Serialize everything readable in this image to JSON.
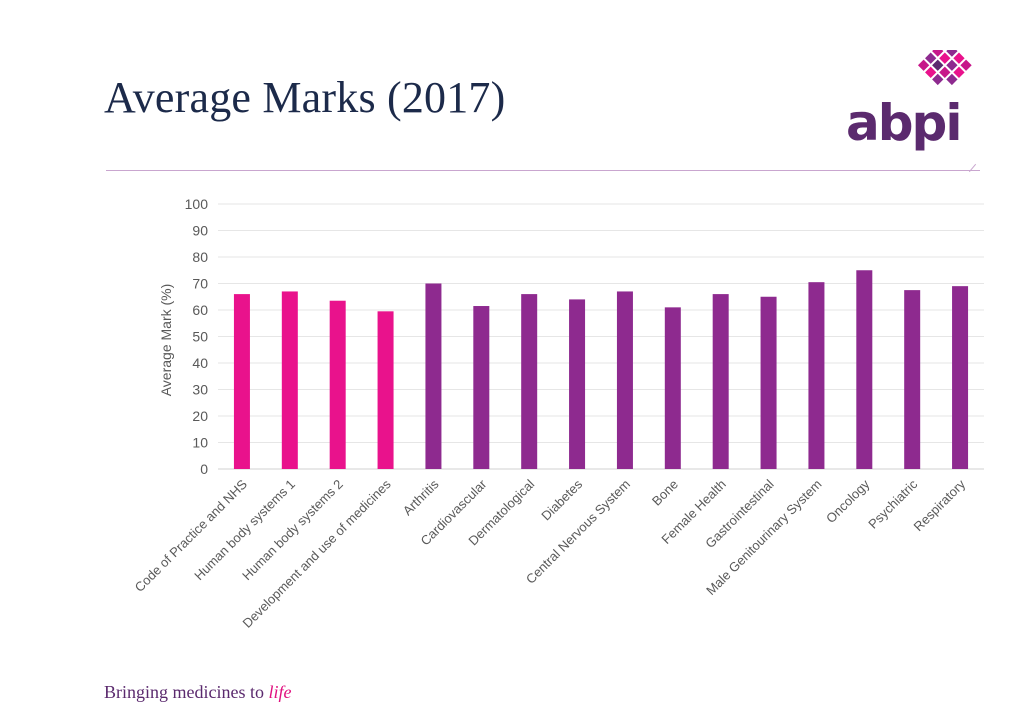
{
  "title": "Average Marks (2017)",
  "logo": {
    "text": "abpi",
    "icon": "tree-pixel-icon"
  },
  "footer": {
    "tagline_prefix": "Bringing medicines to",
    "tagline_emphasis": "life"
  },
  "colors": {
    "primary": "#e9128c",
    "secondary": "#8e2a8f",
    "title": "#1c2a4a",
    "brand": "#5b2a6e"
  },
  "chart_data": {
    "type": "bar",
    "ylabel": "Average Mark (%)",
    "ylim": [
      0,
      100
    ],
    "yticks": [
      0,
      10,
      20,
      30,
      40,
      50,
      60,
      70,
      80,
      90,
      100
    ],
    "grid": true,
    "categories": [
      "Code of Practice and NHS",
      "Human body systems 1",
      "Human body systems 2",
      "Development and use of medicines",
      "Arthritis",
      "Cardiovascular",
      "Dermatological",
      "Diabetes",
      "Central Nervous System",
      "Bone",
      "Female Health",
      "Gastrointestinal",
      "Male Genitourinary System",
      "Oncology",
      "Psychiatric",
      "Respiratory"
    ],
    "values": [
      66,
      67,
      63.5,
      59.5,
      70,
      61.5,
      66,
      64,
      67,
      61,
      66,
      65,
      70.5,
      75,
      67.5,
      69
    ],
    "bar_colors": [
      "#e9128c",
      "#e9128c",
      "#e9128c",
      "#e9128c",
      "#8e2a8f",
      "#8e2a8f",
      "#8e2a8f",
      "#8e2a8f",
      "#8e2a8f",
      "#8e2a8f",
      "#8e2a8f",
      "#8e2a8f",
      "#8e2a8f",
      "#8e2a8f",
      "#8e2a8f",
      "#8e2a8f"
    ]
  }
}
